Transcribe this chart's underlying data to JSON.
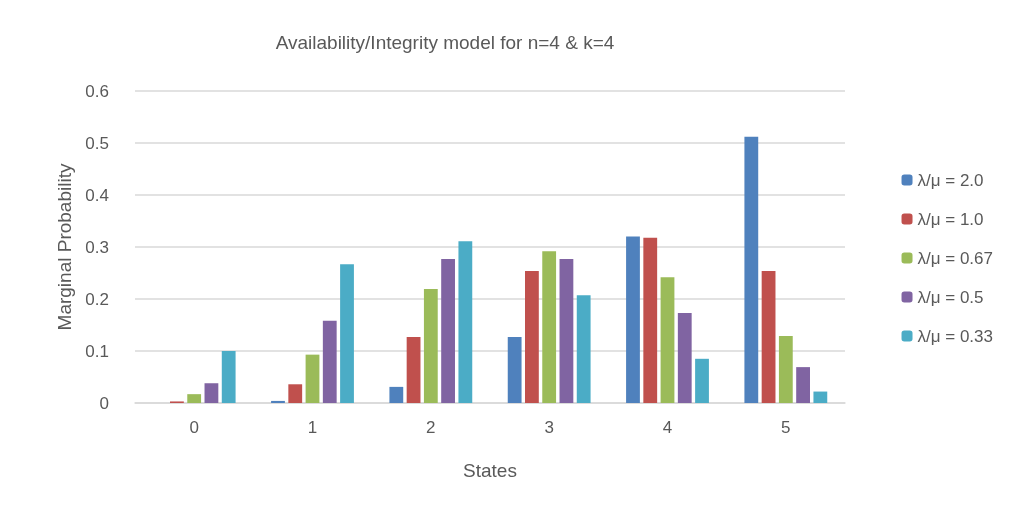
{
  "chart_data": {
    "type": "bar",
    "title": "Availability/Integrity model for n=4 & k=4",
    "xlabel": "States",
    "ylabel": "Marginal Probability",
    "categories": [
      "0",
      "1",
      "2",
      "3",
      "4",
      "5"
    ],
    "series": [
      {
        "name": "λ/μ = 2.0",
        "color": "#4f81bd",
        "values": [
          0.0,
          0.004,
          0.031,
          0.127,
          0.32,
          0.512
        ]
      },
      {
        "name": "λ/μ = 1.0",
        "color": "#c0504d",
        "values": [
          0.003,
          0.036,
          0.127,
          0.254,
          0.318,
          0.254
        ]
      },
      {
        "name": "λ/μ = 0.67",
        "color": "#9bbb59",
        "values": [
          0.017,
          0.093,
          0.219,
          0.292,
          0.242,
          0.129
        ]
      },
      {
        "name": "λ/μ = 0.5",
        "color": "#8064a2",
        "values": [
          0.038,
          0.158,
          0.277,
          0.277,
          0.173,
          0.069
        ]
      },
      {
        "name": "λ/μ = 0.33",
        "color": "#4bacc6",
        "values": [
          0.1,
          0.267,
          0.311,
          0.207,
          0.085,
          0.022
        ]
      }
    ],
    "ylim": [
      0,
      0.6
    ],
    "yticks": [
      0,
      0.1,
      0.2,
      0.3,
      0.4,
      0.5,
      0.6
    ],
    "grid": "y",
    "legend": "right"
  }
}
